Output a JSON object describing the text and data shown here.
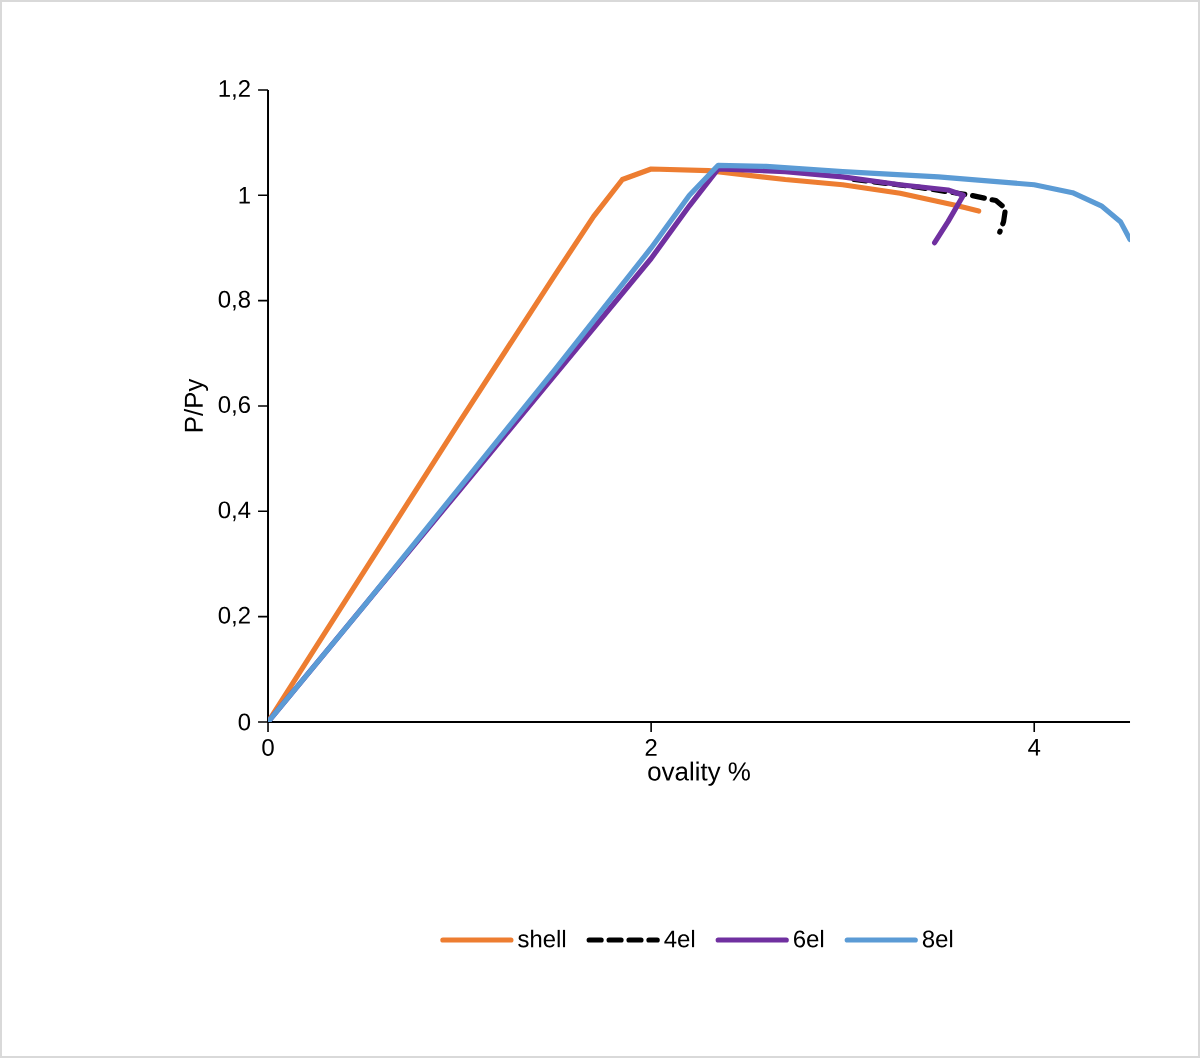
{
  "chart_data": {
    "type": "line",
    "xlabel": "ovality %",
    "ylabel": "P/Py",
    "xlim": [
      0,
      4.5
    ],
    "xticks": [
      0,
      2,
      4
    ],
    "ylim": [
      0,
      1.2
    ],
    "yticks": [
      0,
      {
        "value": 0.2,
        "label": "0,2"
      },
      {
        "value": 0.4,
        "label": "0,4"
      },
      {
        "value": 0.6,
        "label": "0,6"
      },
      {
        "value": 0.8,
        "label": "0,8"
      },
      1,
      {
        "value": 1.2,
        "label": "1,2"
      }
    ],
    "legend": "bottom",
    "series": [
      {
        "name": "shell",
        "color": "#ed7d31",
        "line_style": "solid",
        "x": [
          0,
          0.5,
          1,
          1.5,
          1.7,
          1.85,
          2.0,
          2.3,
          2.7,
          3.0,
          3.3,
          3.6,
          3.71
        ],
        "values": [
          0,
          0.285,
          0.57,
          0.85,
          0.96,
          1.03,
          1.05,
          1.047,
          1.03,
          1.02,
          1.004,
          0.98,
          0.97
        ]
      },
      {
        "name": "4el",
        "color": "#000000",
        "line_style": "dashed",
        "x": [
          3.06,
          3.4,
          3.67,
          3.8,
          3.85,
          3.84,
          3.82
        ],
        "values": [
          1.03,
          1.015,
          1.0,
          0.99,
          0.975,
          0.95,
          0.93
        ]
      },
      {
        "name": "6el",
        "color": "#7030a0",
        "line_style": "solid",
        "x": [
          0,
          1,
          2,
          2.2,
          2.35,
          2.7,
          3.0,
          3.3,
          3.55,
          3.63,
          3.55,
          3.48
        ],
        "values": [
          0,
          0.44,
          0.88,
          0.98,
          1.05,
          1.045,
          1.035,
          1.02,
          1.01,
          1.0,
          0.95,
          0.91
        ]
      },
      {
        "name": "8el",
        "color": "#5b9bd5",
        "line_style": "solid",
        "x": [
          0,
          0.5,
          1,
          1.5,
          2.0,
          2.2,
          2.35,
          2.6,
          3.0,
          3.5,
          4.0,
          4.2,
          4.35,
          4.45,
          4.5
        ],
        "values": [
          0,
          0.22,
          0.445,
          0.67,
          0.9,
          1.0,
          1.057,
          1.055,
          1.045,
          1.035,
          1.02,
          1.005,
          0.98,
          0.95,
          0.916
        ]
      }
    ]
  }
}
